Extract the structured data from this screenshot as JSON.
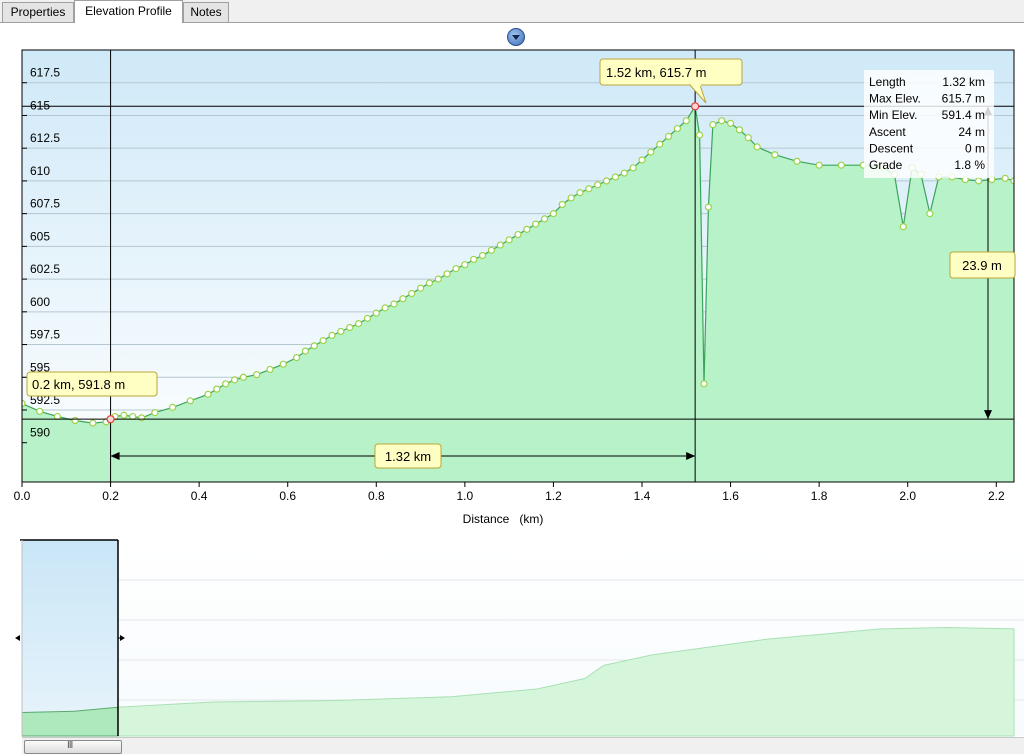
{
  "tabs": [
    {
      "label": "Properties",
      "active": false
    },
    {
      "label": "Elevation Profile",
      "active": true
    },
    {
      "label": "Notes",
      "active": false
    }
  ],
  "stats": {
    "rows": [
      {
        "label": "Length",
        "value": "1.32 km"
      },
      {
        "label": "Max Elev.",
        "value": "615.7 m"
      },
      {
        "label": "Min Elev.",
        "value": "591.4 m"
      },
      {
        "label": "Ascent",
        "value": "24 m"
      },
      {
        "label": "Descent",
        "value": "0 m"
      },
      {
        "label": "Grade",
        "value": "1.8 %"
      }
    ]
  },
  "callouts": {
    "start": "0.2 km, 591.8 m",
    "peak": "1.52 km, 615.7 m",
    "length": "1.32 km",
    "rise": "23.9 m"
  },
  "colors": {
    "fill": "#b8f2c8",
    "line": "#3aa55a",
    "marker": "#9ad34a",
    "selected_marker": "#e04040",
    "sky_top": "#cfe9f8",
    "callout_bg": "#ffffc4"
  },
  "chart_data": {
    "type": "area",
    "xlabel": "Distance   (km)",
    "ylabel": "",
    "xlim": [
      0.0,
      2.24
    ],
    "ylim": [
      587.0,
      620.0
    ],
    "x_ticks": [
      0.0,
      0.2,
      0.4,
      0.6,
      0.8,
      1.0,
      1.2,
      1.4,
      1.6,
      1.8,
      2.0,
      2.2
    ],
    "x_tick_labels": [
      "0.0",
      "0.2",
      "0.4",
      "0.6",
      "0.8",
      "1.0",
      "1.2",
      "1.4",
      "1.6",
      "1.8",
      "2.0",
      "2.2"
    ],
    "y_ticks": [
      590,
      592.5,
      595,
      597.5,
      600,
      602.5,
      605,
      607.5,
      610,
      612.5,
      615,
      617.5
    ],
    "y_tick_labels": [
      "590",
      "592.5",
      "595",
      "597.5",
      "600",
      "602.5",
      "605",
      "607.5",
      "610",
      "612.5",
      "615",
      "617.5"
    ],
    "grid": true,
    "series": [
      {
        "x": [
          0.0,
          0.04,
          0.08,
          0.12,
          0.16,
          0.19,
          0.2,
          0.21,
          0.23,
          0.25,
          0.27,
          0.3,
          0.34,
          0.38,
          0.42,
          0.44,
          0.46,
          0.48,
          0.5,
          0.53,
          0.56,
          0.59,
          0.62,
          0.64,
          0.66,
          0.68,
          0.7,
          0.72,
          0.74,
          0.76,
          0.78,
          0.8,
          0.82,
          0.84,
          0.86,
          0.88,
          0.9,
          0.92,
          0.94,
          0.96,
          0.98,
          1.0,
          1.02,
          1.04,
          1.06,
          1.08,
          1.1,
          1.12,
          1.14,
          1.16,
          1.18,
          1.2,
          1.22,
          1.24,
          1.26,
          1.28,
          1.3,
          1.32,
          1.34,
          1.36,
          1.38,
          1.4,
          1.42,
          1.44,
          1.46,
          1.48,
          1.5,
          1.52,
          1.53,
          1.54,
          1.55,
          1.56,
          1.58,
          1.6,
          1.62,
          1.64,
          1.66,
          1.7,
          1.75,
          1.8,
          1.85,
          1.9,
          1.94,
          1.97,
          1.99,
          2.01,
          2.03,
          2.05,
          2.07,
          2.1,
          2.13,
          2.16,
          2.19,
          2.22,
          2.24
        ],
        "y": [
          593.0,
          592.4,
          592.0,
          591.7,
          591.5,
          591.6,
          591.8,
          592.0,
          592.1,
          592.0,
          591.9,
          592.3,
          592.7,
          593.2,
          593.7,
          594.1,
          594.5,
          594.8,
          595.0,
          595.2,
          595.6,
          596.0,
          596.5,
          597.0,
          597.4,
          597.8,
          598.2,
          598.5,
          598.8,
          599.1,
          599.5,
          599.9,
          600.3,
          600.6,
          601.0,
          601.4,
          601.8,
          602.2,
          602.5,
          602.9,
          603.3,
          603.6,
          604.0,
          604.3,
          604.7,
          605.1,
          605.5,
          605.9,
          606.3,
          606.7,
          607.1,
          607.5,
          608.2,
          608.7,
          609.1,
          609.4,
          609.7,
          610.0,
          610.3,
          610.6,
          611.0,
          611.6,
          612.2,
          612.8,
          613.4,
          614.0,
          614.6,
          615.7,
          613.5,
          594.5,
          608.0,
          614.3,
          614.6,
          614.4,
          613.9,
          613.3,
          612.6,
          612.0,
          611.5,
          611.2,
          611.2,
          611.2,
          611.1,
          610.5,
          606.5,
          611.0,
          610.5,
          607.5,
          610.3,
          610.3,
          610.1,
          610.0,
          610.1,
          610.2,
          610.0
        ]
      }
    ],
    "selection": {
      "start_km": 0.2,
      "end_km": 1.52,
      "start_elev": 591.8,
      "end_elev": 615.7
    }
  }
}
